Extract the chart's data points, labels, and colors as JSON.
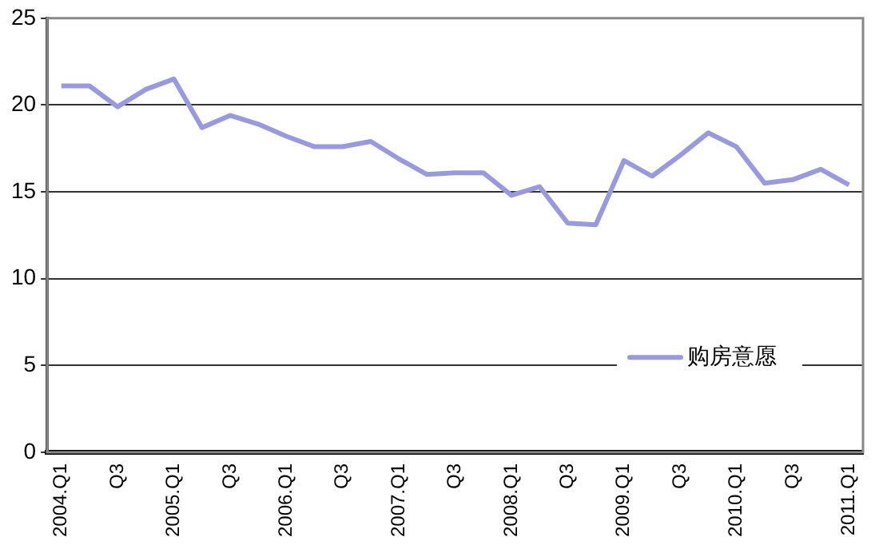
{
  "chart_data": {
    "type": "line",
    "categories": [
      "2004.Q1",
      null,
      "Q3",
      null,
      "2005.Q1",
      null,
      "Q3",
      null,
      "2006.Q1",
      null,
      "Q3",
      null,
      "2007.Q1",
      null,
      "Q3",
      null,
      "2008.Q1",
      null,
      "Q3",
      null,
      "2009.Q1",
      null,
      "Q3",
      null,
      "2010.Q1",
      null,
      "Q3",
      null,
      "2011.Q1"
    ],
    "series": [
      {
        "name": "购房意愿",
        "color": "#9999e0",
        "values": [
          21.1,
          21.1,
          19.9,
          20.9,
          21.5,
          18.7,
          19.4,
          18.9,
          18.2,
          17.6,
          17.6,
          17.9,
          16.9,
          16.0,
          16.1,
          16.1,
          14.8,
          15.3,
          13.2,
          13.1,
          16.8,
          15.9,
          17.1,
          18.4,
          17.6,
          15.5,
          15.7,
          16.3,
          15.4
        ]
      }
    ],
    "ylim": [
      0,
      25
    ],
    "yticks": [
      0,
      5,
      10,
      15,
      20,
      25
    ],
    "grid": "y",
    "legend": "bottom right",
    "marker": "none",
    "line_style": "solid"
  }
}
